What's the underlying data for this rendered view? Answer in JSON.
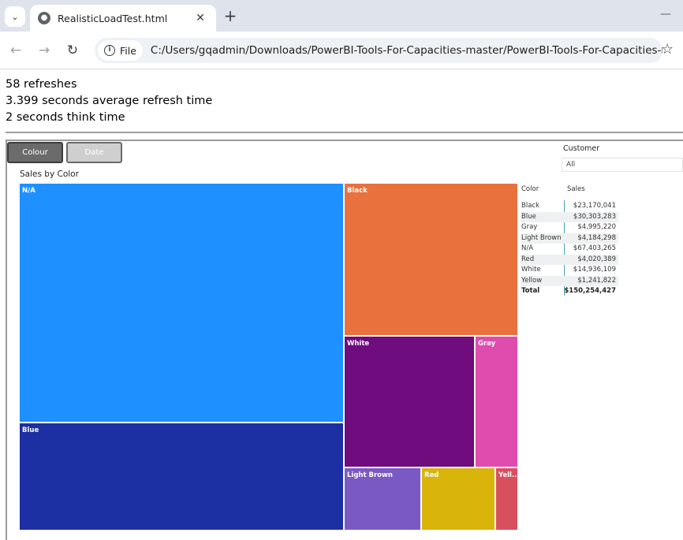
{
  "browser": {
    "tab_title": "RealisticLoadTest.html",
    "chip_label": "File",
    "url": "C:/Users/gqadmin/Downloads/PowerBI-Tools-For-Capacities-master/PowerBI-Tools-For-Capacities-ma…",
    "icons": {
      "tab_search": "chevron-down-icon",
      "favicon": "globe-icon",
      "close": "close-icon",
      "new_tab": "plus-icon",
      "back": "arrow-left-icon",
      "forward": "arrow-right-icon",
      "reload": "reload-icon",
      "info": "info-icon",
      "bookmark": "star-icon",
      "minimize": "minimize-icon"
    }
  },
  "stats": {
    "refreshes": "58 refreshes",
    "avg_refresh": "3.399 seconds average refresh time",
    "think_time": "2 seconds think time"
  },
  "report": {
    "buttons": {
      "colour": "Colour",
      "date": "Date"
    },
    "slicer": {
      "label": "Customer",
      "value": "All"
    },
    "chart_title": "Sales by Color",
    "table": {
      "headers": {
        "color": "Color",
        "sales": "Sales"
      },
      "rows": [
        {
          "color": "Black",
          "sales": "$23,170,041"
        },
        {
          "color": "Blue",
          "sales": "$30,303,283"
        },
        {
          "color": "Gray",
          "sales": "$4,995,220"
        },
        {
          "color": "Light Brown",
          "sales": "$4,184,298"
        },
        {
          "color": "N/A",
          "sales": "$67,403,265"
        },
        {
          "color": "Red",
          "sales": "$4,020,389"
        },
        {
          "color": "White",
          "sales": "$14,936,109"
        },
        {
          "color": "Yellow",
          "sales": "$1,241,822"
        }
      ],
      "total": {
        "label": "Total",
        "sales": "$150,254,427"
      }
    }
  },
  "chart_data": {
    "type": "treemap",
    "title": "Sales by Color",
    "series": [
      {
        "name": "N/A",
        "label": "N/A",
        "value": 67403265,
        "color": "#1e90ff"
      },
      {
        "name": "Blue",
        "label": "Blue",
        "value": 30303283,
        "color": "#1c2fa3"
      },
      {
        "name": "Black",
        "label": "Black",
        "value": 23170041,
        "color": "#e8713e"
      },
      {
        "name": "White",
        "label": "White",
        "value": 14936109,
        "color": "#6f0c7e"
      },
      {
        "name": "Gray",
        "label": "Gray",
        "value": 4995220,
        "color": "#e04cad"
      },
      {
        "name": "Light Brown",
        "label": "Light Brown",
        "value": 4184298,
        "color": "#7b59c4"
      },
      {
        "name": "Red",
        "label": "Red",
        "value": 4020389,
        "color": "#d9b40a"
      },
      {
        "name": "Yellow",
        "label": "Yell...",
        "value": 1241822,
        "color": "#d8505d"
      }
    ]
  }
}
